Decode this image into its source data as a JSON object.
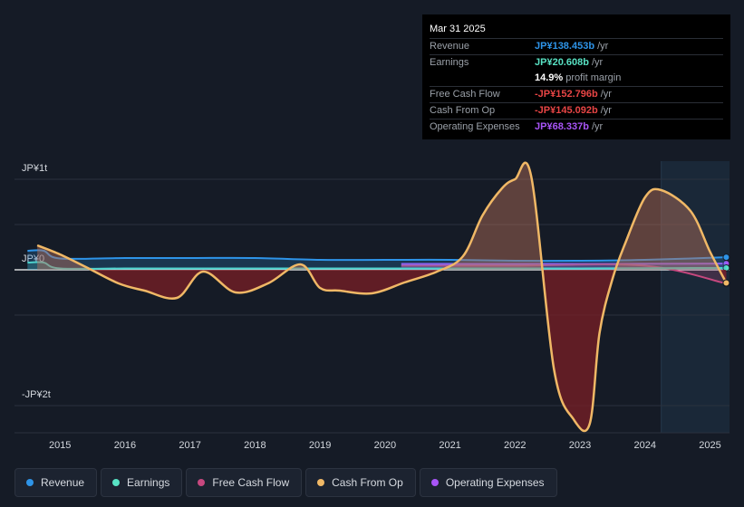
{
  "chart_data": {
    "type": "area",
    "y_ticks": [
      "JP¥1t",
      "JP¥0",
      "-JP¥2t"
    ],
    "x_ticks": [
      "2015",
      "2016",
      "2017",
      "2018",
      "2019",
      "2020",
      "2021",
      "2022",
      "2023",
      "2024",
      "2025"
    ],
    "ylim_billion": [
      -1800,
      1200
    ],
    "xlim_year": [
      2014.3,
      2025.3
    ],
    "past_data_start_year": 2024.25,
    "series": [
      {
        "name": "Revenue",
        "color": "#2e94e8",
        "x": [
          2014.5,
          2014.75,
          2015.0,
          2016.0,
          2017.0,
          2018.0,
          2019.0,
          2020.0,
          2021.0,
          2022.0,
          2023.0,
          2024.0,
          2025.25
        ],
        "values": [
          210,
          210,
          125,
          130,
          130,
          130,
          110,
          110,
          110,
          100,
          100,
          110,
          138.453
        ]
      },
      {
        "name": "Earnings",
        "color": "#58e2c4",
        "x": [
          2014.5,
          2014.75,
          2015.0,
          2016.0,
          2017.0,
          2018.0,
          2019.0,
          2020.0,
          2021.0,
          2022.0,
          2023.0,
          2024.0,
          2025.25
        ],
        "values": [
          80,
          80,
          15,
          15,
          15,
          15,
          15,
          15,
          15,
          15,
          15,
          18,
          20.608
        ]
      },
      {
        "name": "Free Cash Flow",
        "color": "#c7487f",
        "x": [
          2020.25,
          2022.0,
          2024.0,
          2025.25
        ],
        "values": [
          45,
          45,
          45,
          -152.796
        ]
      },
      {
        "name": "Cash From Op",
        "color": "#f0b866",
        "x": [
          2014.65,
          2015.0,
          2015.4,
          2015.9,
          2016.3,
          2016.8,
          2017.2,
          2017.7,
          2018.2,
          2018.7,
          2019.0,
          2019.3,
          2019.8,
          2020.3,
          2020.8,
          2021.2,
          2021.5,
          2021.8,
          2022.0,
          2022.25,
          2022.6,
          2022.9,
          2023.15,
          2023.3,
          2023.5,
          2023.7,
          2024.0,
          2024.25,
          2024.7,
          2025.0,
          2025.25
        ],
        "values": [
          270,
          170,
          30,
          -150,
          -230,
          -310,
          -20,
          -250,
          -150,
          60,
          -200,
          -230,
          -260,
          -140,
          -20,
          150,
          600,
          900,
          1000,
          1030,
          -1100,
          -1650,
          -1700,
          -700,
          -100,
          300,
          800,
          880,
          650,
          200,
          -145.092
        ]
      },
      {
        "name": "Operating Expenses",
        "color": "#a855f7",
        "x": [
          2020.25,
          2022.0,
          2024.0,
          2025.25
        ],
        "values": [
          65,
          65,
          66,
          68.337
        ]
      }
    ]
  },
  "tooltip": {
    "date": "Mar 31 2025",
    "rows": [
      {
        "label": "Revenue",
        "value": "JP¥138.453b",
        "unit": "/yr",
        "color": "#2e94e8"
      },
      {
        "label": "Earnings",
        "value": "JP¥20.608b",
        "unit": "/yr",
        "color": "#58e2c4"
      },
      {
        "label": "",
        "value": "14.9%",
        "unit": "profit margin",
        "color": "#ffffff"
      },
      {
        "label": "Free Cash Flow",
        "value": "-JP¥152.796b",
        "unit": "/yr",
        "color": "#e84545"
      },
      {
        "label": "Cash From Op",
        "value": "-JP¥145.092b",
        "unit": "/yr",
        "color": "#e84545"
      },
      {
        "label": "Operating Expenses",
        "value": "JP¥68.337b",
        "unit": "/yr",
        "color": "#a855f7"
      }
    ]
  },
  "legend": [
    {
      "label": "Revenue",
      "color": "#2e94e8"
    },
    {
      "label": "Earnings",
      "color": "#58e2c4"
    },
    {
      "label": "Free Cash Flow",
      "color": "#c7487f"
    },
    {
      "label": "Cash From Op",
      "color": "#f0b866"
    },
    {
      "label": "Operating Expenses",
      "color": "#a855f7"
    }
  ]
}
